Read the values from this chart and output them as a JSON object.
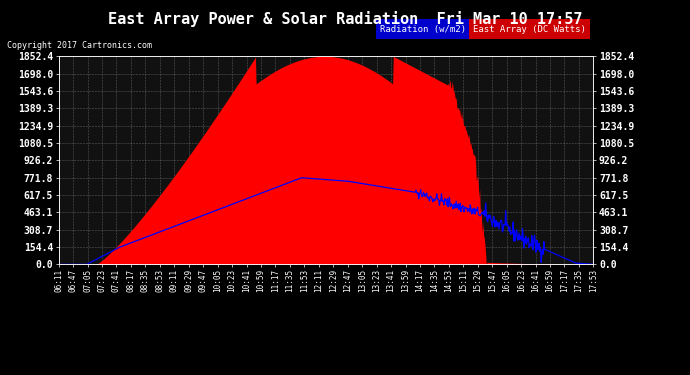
{
  "title": "East Array Power & Solar Radiation  Fri Mar 10 17:57",
  "copyright": "Copyright 2017 Cartronics.com",
  "legend_radiation": "Radiation (w/m2)",
  "legend_east": "East Array (DC Watts)",
  "bg_color": "#000000",
  "plot_bg_color": "#111111",
  "grid_color": "#888888",
  "red_fill_color": "#ff0000",
  "blue_line_color": "#0000ff",
  "ytick_values": [
    0.0,
    154.4,
    308.7,
    463.1,
    617.5,
    771.8,
    926.2,
    1080.5,
    1234.9,
    1389.3,
    1543.6,
    1698.0,
    1852.4
  ],
  "ymax": 1852.4,
  "ymin": 0.0,
  "xtick_labels": [
    "06:11",
    "06:47",
    "07:05",
    "07:23",
    "07:41",
    "08:17",
    "08:35",
    "08:53",
    "09:11",
    "09:29",
    "09:47",
    "10:05",
    "10:23",
    "10:41",
    "10:59",
    "11:17",
    "11:35",
    "11:53",
    "12:11",
    "12:29",
    "12:47",
    "13:05",
    "13:23",
    "13:41",
    "13:59",
    "14:17",
    "14:35",
    "14:53",
    "15:11",
    "15:29",
    "15:47",
    "16:05",
    "16:23",
    "16:41",
    "16:59",
    "17:17",
    "17:35",
    "17:53"
  ],
  "title_fontsize": 11,
  "copyright_fontsize": 6,
  "axis_fontsize": 5.5,
  "ytick_fontsize": 7,
  "legend_fontsize": 6.5
}
